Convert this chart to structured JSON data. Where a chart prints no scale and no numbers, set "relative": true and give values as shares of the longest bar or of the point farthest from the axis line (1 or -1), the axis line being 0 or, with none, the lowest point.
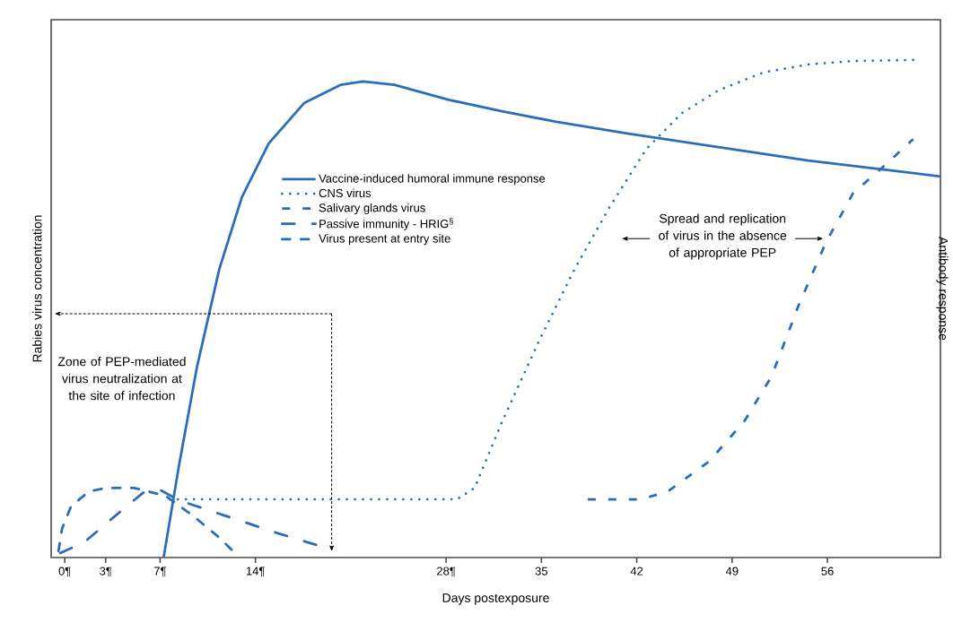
{
  "chart_data": {
    "type": "line",
    "relative": true,
    "xlabel": "Days postexposure",
    "ylabel": "Rabies virus concentration",
    "y2label": "Antibody response",
    "xlim": [
      -1.0,
      64.3
    ],
    "xticks": [
      {
        "value": 0,
        "label": "0¶"
      },
      {
        "value": 3,
        "label": "3¶"
      },
      {
        "value": 7,
        "label": "7¶"
      },
      {
        "value": 14,
        "label": "14¶"
      },
      {
        "value": 28,
        "label": "28¶"
      },
      35,
      42,
      49,
      56
    ],
    "legend": "top left",
    "grid": false,
    "series": [
      {
        "name": "Vaccine-induced humoral immune response",
        "color": "#2a6ebb",
        "line_style": "solid",
        "x": [
          7.26,
          8.38,
          9.7,
          11.35,
          13.0,
          14.97,
          17.6,
          20.25,
          21.9,
          24.2,
          28.2,
          32.1,
          36.1,
          41.4,
          48.0,
          54.6,
          64.3
        ],
        "values": [
          0,
          0.184,
          0.382,
          0.58,
          0.724,
          0.832,
          0.914,
          0.95,
          0.957,
          0.95,
          0.92,
          0.897,
          0.876,
          0.852,
          0.825,
          0.798,
          0.766
        ]
      },
      {
        "name": "CNS virus",
        "color": "#2a6ebb",
        "line_style": "dotted",
        "x": [
          7.72,
          14.97,
          21.6,
          28.8,
          30.1,
          32.1,
          34.8,
          37.4,
          40.0,
          42.7,
          45.3,
          48.0,
          51.3,
          54.6,
          57.9,
          62.3
        ],
        "values": [
          0.117,
          0.117,
          0.117,
          0.117,
          0.14,
          0.272,
          0.434,
          0.578,
          0.704,
          0.821,
          0.893,
          0.939,
          0.975,
          0.991,
          0.998,
          1.0
        ]
      },
      {
        "name": "Salivary glands virus",
        "color": "#2a6ebb",
        "line_style": "dashed",
        "x": [
          38.4,
          42.3,
          44.3,
          47.3,
          49.9,
          51.9,
          53.9,
          55.9,
          57.9,
          59.8,
          62.3
        ],
        "values": [
          0.117,
          0.117,
          0.133,
          0.193,
          0.274,
          0.364,
          0.508,
          0.634,
          0.733,
          0.778,
          0.841
        ]
      },
      {
        "name": "Passive immunity - HRIG$^{§}$",
        "color": "#2a6ebb",
        "line_style": "dashdotdot",
        "x": [
          -0.33,
          1.45,
          3.76,
          5.74,
          7.06,
          8.38,
          11.68,
          15.63,
          19.6
        ],
        "values": [
          0.009,
          0.031,
          0.085,
          0.13,
          0.135,
          0.115,
          0.085,
          0.049,
          0.016
        ]
      },
      {
        "name": "Virus present at entry site",
        "color": "#2a6ebb",
        "line_style": "dashdot",
        "x": [
          -0.46,
          -0.2,
          0.46,
          1.78,
          3.1,
          5.08,
          7.39,
          9.37,
          11.35,
          12.5
        ],
        "values": [
          0.013,
          0.058,
          0.103,
          0.133,
          0.14,
          0.14,
          0.124,
          0.085,
          0.04,
          0.009
        ]
      }
    ],
    "annotations": [
      "Zone of PEP-mediated virus neutralization at the site of infection",
      "Spread and replication of virus in the absence of appropriate PEP"
    ]
  }
}
